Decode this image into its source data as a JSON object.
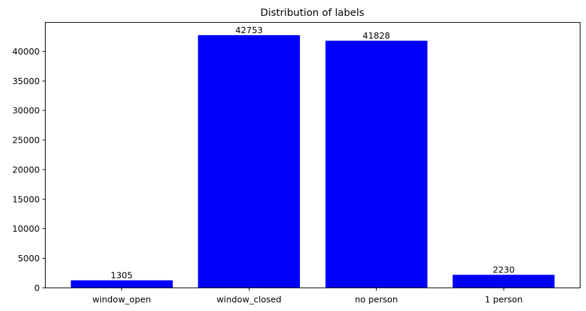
{
  "chart_data": {
    "type": "bar",
    "title": "Distribution of labels",
    "xlabel": "",
    "ylabel": "",
    "categories": [
      "window_open",
      "window_closed",
      "no person",
      "1 person"
    ],
    "values": [
      1305,
      42753,
      41828,
      2230
    ],
    "data_labels": [
      "1305",
      "42753",
      "41828",
      "2230"
    ],
    "yticks": [
      0,
      5000,
      10000,
      15000,
      20000,
      25000,
      30000,
      35000,
      40000
    ],
    "ylim": [
      0,
      44891
    ],
    "grid": false,
    "legend": "none",
    "bar_color": "#0000ff"
  }
}
